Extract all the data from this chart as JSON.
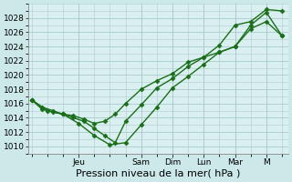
{
  "background_color": "#cce8e8",
  "plot_bg_color": "#daf0f0",
  "grid_color": "#aacccc",
  "line_color": "#1a6e1a",
  "marker_color": "#1a6e1a",
  "xlabel": "Pression niveau de la mer( hPa )",
  "xlabel_fontsize": 8,
  "ylim": [
    1009,
    1030
  ],
  "ytick_values": [
    1010,
    1012,
    1014,
    1016,
    1018,
    1020,
    1022,
    1024,
    1026,
    1028
  ],
  "ytick_fontsize": 6.5,
  "x_day_labels": [
    "Jeu",
    "Sam",
    "Dim",
    "Lun",
    "Mar",
    "M"
  ],
  "x_day_positions": [
    1.5,
    3.5,
    4.5,
    5.5,
    6.5,
    7.5
  ],
  "xlim": [
    -0.1,
    8.2
  ],
  "series1_x": [
    0,
    0.33,
    0.67,
    1.0,
    1.33,
    1.67,
    2.0,
    2.33,
    2.67,
    3.0,
    3.5,
    4.0,
    4.5,
    5.0,
    5.5,
    6.0,
    6.5,
    7.0,
    7.5,
    8.0
  ],
  "series1_y": [
    1016.5,
    1015.2,
    1014.8,
    1014.5,
    1014.3,
    1013.8,
    1013.2,
    1013.5,
    1014.5,
    1016.0,
    1018.0,
    1019.2,
    1020.2,
    1021.8,
    1022.5,
    1023.2,
    1024.0,
    1026.5,
    1027.5,
    1025.5
  ],
  "series2_x": [
    0,
    0.33,
    0.67,
    1.0,
    1.33,
    1.67,
    2.0,
    2.33,
    2.67,
    3.0,
    3.5,
    4.0,
    4.5,
    5.0,
    5.5,
    6.0,
    6.5,
    7.0,
    7.5,
    8.0
  ],
  "series2_y": [
    1016.5,
    1015.5,
    1015.0,
    1014.5,
    1014.0,
    1013.5,
    1012.5,
    1011.5,
    1010.5,
    1013.5,
    1015.8,
    1018.2,
    1019.5,
    1021.2,
    1022.5,
    1024.2,
    1027.0,
    1027.5,
    1029.2,
    1029.0
  ],
  "series3_x": [
    0,
    0.5,
    1.0,
    1.5,
    2.0,
    2.5,
    3.0,
    3.5,
    4.0,
    4.5,
    5.0,
    5.5,
    6.0,
    6.5,
    7.0,
    7.5,
    8.0
  ],
  "series3_y": [
    1016.5,
    1015.0,
    1014.5,
    1013.2,
    1011.5,
    1010.2,
    1010.5,
    1013.0,
    1015.5,
    1018.2,
    1019.8,
    1021.5,
    1023.2,
    1024.0,
    1027.0,
    1028.8,
    1025.5
  ]
}
